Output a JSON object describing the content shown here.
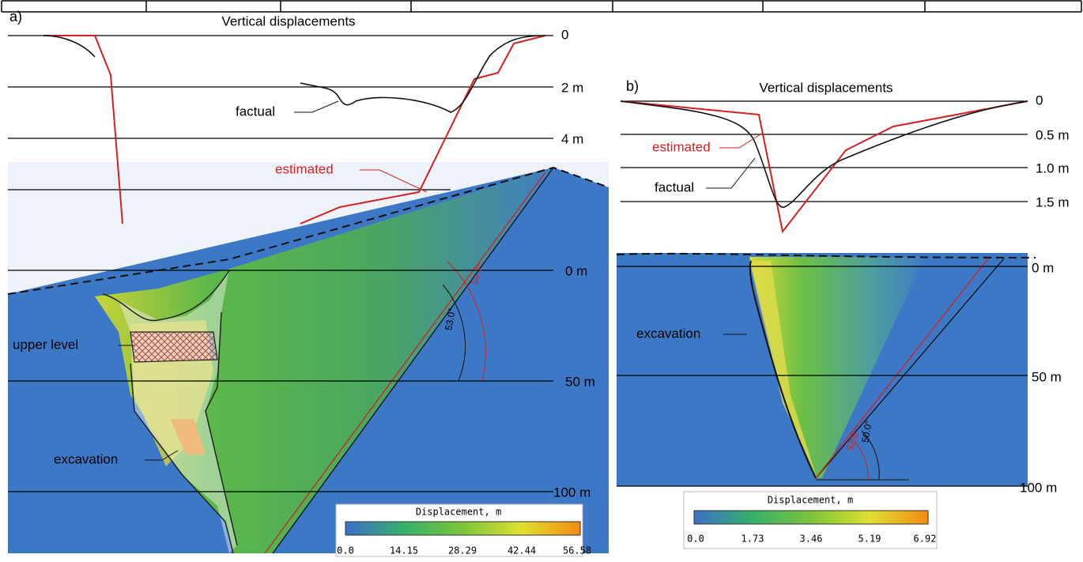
{
  "panel_a": {
    "label": "a)",
    "title": "Vertical displacements",
    "profile_ticks": [
      "0",
      "2 m",
      "4 m"
    ],
    "depth_ticks": [
      "0 m",
      "50 m",
      "100 m"
    ],
    "annotations": {
      "factual": "factual",
      "estimated": "estimated",
      "upper_level": "upper level",
      "excavation": "excavation"
    },
    "angles": [
      "53.0°",
      "54.7°"
    ],
    "colorbar": {
      "title": "Displacement, m",
      "ticks": [
        "0.0",
        "14.15",
        "28.29",
        "42.44",
        "56.58"
      ]
    }
  },
  "panel_b": {
    "label": "b)",
    "title": "Vertical displacements",
    "profile_ticks": [
      "0",
      "0.5 m",
      "1.0 m",
      "1.5 m"
    ],
    "depth_ticks": [
      "0 m",
      "50 m",
      "100 m"
    ],
    "annotations": {
      "estimated": "estimated",
      "factual": "factual",
      "excavation": "excavation"
    },
    "angles": [
      "50.0°",
      "52.8°"
    ],
    "colorbar": {
      "title": "Displacement, m",
      "ticks": [
        "0.0",
        "1.73",
        "3.46",
        "5.19",
        "6.92"
      ]
    }
  }
}
